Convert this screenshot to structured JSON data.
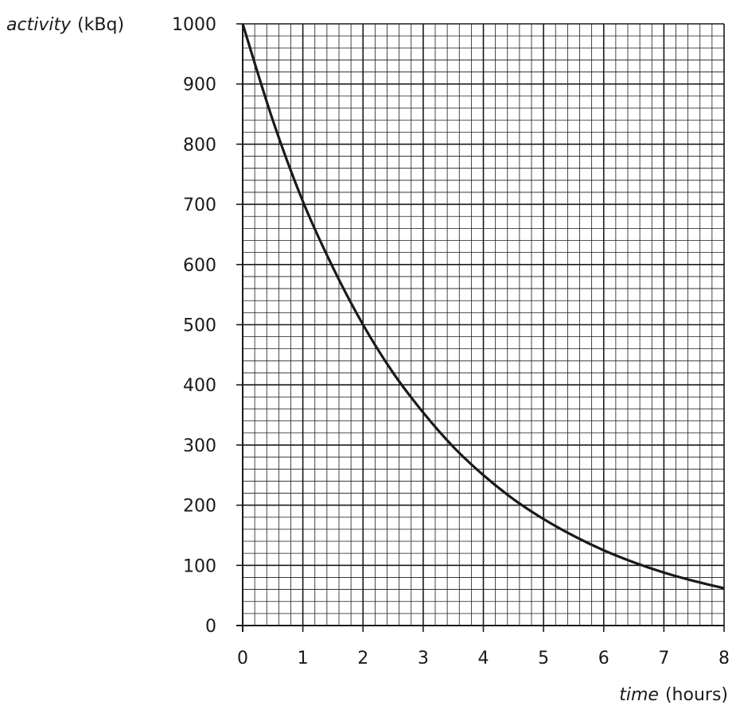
{
  "chart_data": {
    "type": "line",
    "ylabel_var": "activity",
    "ylabel_unit": "(kBq)",
    "xlabel_var": "time",
    "xlabel_unit": "(hours)",
    "xlim": [
      0,
      8
    ],
    "ylim": [
      0,
      1000
    ],
    "x_ticks": [
      "0",
      "1",
      "2",
      "3",
      "4",
      "5",
      "6",
      "7",
      "8"
    ],
    "y_ticks": [
      "0",
      "100",
      "200",
      "300",
      "400",
      "500",
      "600",
      "700",
      "800",
      "900",
      "1000"
    ],
    "grid": true,
    "minor_grid_per_major": 5,
    "line_color": "#1a1a1a",
    "grid_color": "#1a1a1a",
    "series": [
      {
        "x": [
          0,
          0.5,
          1,
          1.5,
          2,
          2.5,
          3,
          3.5,
          4,
          4.5,
          5,
          5.5,
          6,
          6.5,
          7,
          7.5,
          8
        ],
        "y": [
          1000,
          840,
          705,
          595,
          500,
          420,
          354,
          297,
          250,
          210,
          177,
          149,
          125,
          105,
          88,
          74,
          62
        ]
      }
    ]
  }
}
